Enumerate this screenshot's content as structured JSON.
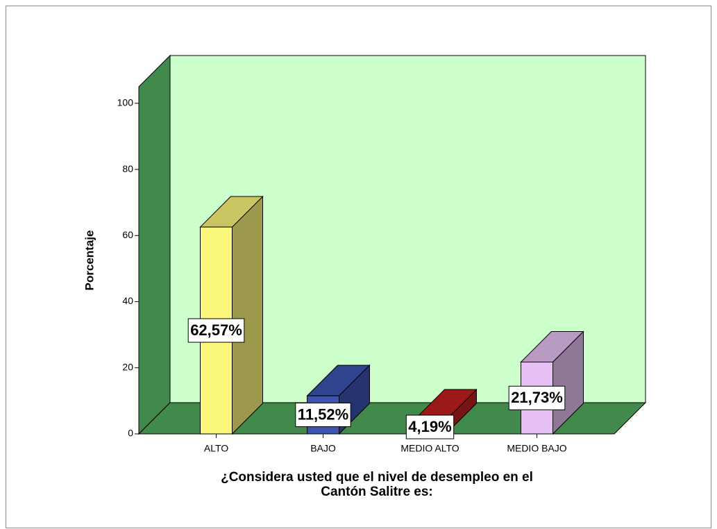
{
  "chart_data": {
    "type": "bar3d",
    "categories": [
      "ALTO",
      "BAJO",
      "MEDIO ALTO",
      "MEDIO BAJO"
    ],
    "values": [
      62.57,
      11.52,
      4.19,
      21.73
    ],
    "value_labels": [
      "62,57%",
      "11,52%",
      "4,19%",
      "21,73%"
    ],
    "colors": [
      "#fbf67c",
      "#3b54b2",
      "#c2201f",
      "#e6c0f4"
    ],
    "ylabel": "Porcentaje",
    "xlabel": [
      "¿Considera usted que el nivel de desempleo en el",
      "Cantón Salitre es:"
    ],
    "ylim": [
      0,
      105
    ],
    "yticks": [
      0,
      20,
      40,
      60,
      80,
      100
    ]
  }
}
